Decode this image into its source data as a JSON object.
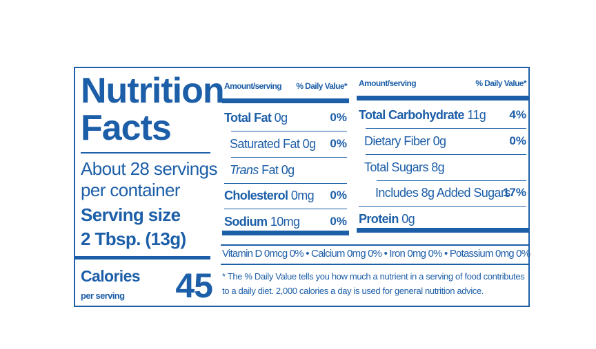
{
  "label": {
    "title_line1": "Nutrition",
    "title_line2": "Facts",
    "servings_line1": "About 28 servings",
    "servings_line2": "per container",
    "serving_size_label": "Serving size",
    "serving_size": "2 Tbsp. (13g)",
    "calories_label": "Calories",
    "calories_sub": "per serving",
    "calories": "45",
    "left_column": {
      "header_amount": "Amount/serving",
      "header_dv": "% Daily Value*",
      "rows": [
        {
          "name": "Total Fat",
          "amount": "0g",
          "dv": "0%"
        },
        {
          "name": "Saturated Fat",
          "amount": "0g",
          "dv": "0%"
        },
        {
          "name_italic": "Trans",
          "name": "Fat",
          "amount": "0g"
        },
        {
          "name": "Cholesterol",
          "amount": "0mg",
          "dv": "0%"
        },
        {
          "name": "Sodium",
          "amount": "10mg",
          "dv": "0%"
        }
      ]
    },
    "right_column": {
      "header_amount": "Amount/serving",
      "header_dv": "% Daily Value*",
      "rows": [
        {
          "name": "Total Carbohydrate",
          "amount": "11g",
          "dv": "4%"
        },
        {
          "name": "Dietary Fiber",
          "amount": "0g",
          "dv": "0%"
        },
        {
          "name": "Total Sugars",
          "amount": "8g"
        },
        {
          "name": "Includes 8g Added Sugars",
          "dv": "17%"
        },
        {
          "name": "Protein",
          "amount": "0g"
        }
      ]
    },
    "vitamins": [
      "Vitamin D 0mcg 0%",
      "Calcium 0mg 0%",
      "Iron 0mg 0%",
      "Potassium 0mg 0%"
    ],
    "footnote": "* The % Daily Value tells you how much a nutrient in a serving of food contributes to a daily diet. 2,000 calories a day is used for general nutrition advice."
  }
}
